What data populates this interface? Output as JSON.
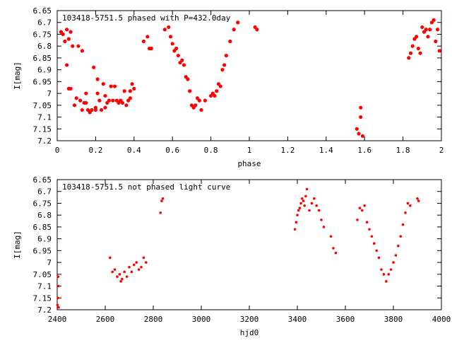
{
  "chart_data": [
    {
      "type": "scatter",
      "title": "103418-5751.5 phased with P=432.0day",
      "xlabel": "phase",
      "ylabel": "I[mag]",
      "xlim": [
        0,
        2
      ],
      "ylim": [
        6.65,
        7.2
      ],
      "y_inverted": true,
      "xticks": [
        "0",
        "0.2",
        "0.4",
        "0.6",
        "0.8",
        "1",
        "1.2",
        "1.4",
        "1.6",
        "1.8",
        "2"
      ],
      "yticks": [
        "6.65",
        "6.7",
        "6.75",
        "6.8",
        "6.85",
        "6.9",
        "6.95",
        "7",
        "7.05",
        "7.1",
        "7.15",
        "7.2"
      ],
      "marker_color": "#ff0000",
      "series": [
        {
          "x": [
            0.02,
            0.03,
            0.04,
            0.05,
            0.05,
            0.06,
            0.06,
            0.07,
            0.07,
            0.08,
            0.09,
            0.1,
            0.11,
            0.12,
            0.13,
            0.13,
            0.14,
            0.15,
            0.15,
            0.16,
            0.17,
            0.18,
            0.19,
            0.2,
            0.2,
            0.21,
            0.21,
            0.22,
            0.23,
            0.24,
            0.25,
            0.25,
            0.26,
            0.27,
            0.28,
            0.29,
            0.3,
            0.31,
            0.32,
            0.33,
            0.34,
            0.35,
            0.36,
            0.37,
            0.38,
            0.38,
            0.39,
            0.4,
            0.45,
            0.47,
            0.48,
            0.49,
            0.56,
            0.58,
            0.59,
            0.6,
            0.61,
            0.62,
            0.63,
            0.64,
            0.65,
            0.66,
            0.67,
            0.68,
            0.69,
            0.7,
            0.71,
            0.72,
            0.73,
            0.74,
            0.75,
            0.77,
            0.8,
            0.81,
            0.82,
            0.83,
            0.84,
            0.85,
            0.86,
            0.87,
            0.88,
            0.9,
            0.92,
            0.94,
            1.03,
            1.04,
            1.56,
            1.57,
            1.58,
            1.58,
            1.59,
            1.83,
            1.84,
            1.85,
            1.86,
            1.87,
            1.88,
            1.89,
            1.9,
            1.91,
            1.92,
            1.93,
            1.94,
            1.95,
            1.96,
            1.97,
            1.98,
            1.99
          ],
          "y": [
            6.74,
            6.75,
            6.78,
            6.88,
            6.73,
            6.77,
            6.98,
            6.74,
            6.98,
            6.8,
            7.05,
            7.02,
            6.8,
            7.03,
            7.07,
            6.82,
            7.04,
            7.0,
            7.04,
            7.07,
            7.08,
            7.07,
            6.89,
            7.07,
            7.06,
            7.0,
            6.94,
            7.03,
            7.07,
            6.96,
            7.06,
            7.01,
            7.04,
            7.03,
            6.97,
            7.03,
            6.97,
            7.03,
            7.04,
            7.03,
            7.04,
            6.99,
            7.05,
            7.03,
            7.02,
            6.99,
            6.96,
            6.98,
            6.78,
            6.76,
            6.81,
            6.81,
            6.73,
            6.72,
            6.76,
            6.79,
            6.82,
            6.81,
            6.84,
            6.87,
            6.86,
            6.88,
            6.93,
            6.94,
            6.99,
            7.05,
            7.06,
            7.05,
            7.02,
            7.03,
            7.07,
            7.03,
            7.01,
            7.0,
            7.01,
            6.99,
            6.96,
            6.97,
            6.9,
            6.88,
            6.84,
            6.78,
            6.73,
            6.7,
            6.72,
            6.73,
            7.15,
            7.17,
            7.06,
            7.1,
            7.18,
            6.85,
            6.83,
            6.8,
            6.77,
            6.76,
            6.81,
            6.83,
            6.72,
            6.74,
            6.73,
            6.76,
            6.73,
            6.7,
            6.69,
            6.78,
            6.73,
            6.82
          ]
        }
      ]
    },
    {
      "type": "scatter",
      "title": "103418-5751.5 not phased light curve",
      "xlabel": "hjd0",
      "ylabel": "I[mag]",
      "xlim": [
        2400,
        4000
      ],
      "ylim": [
        6.65,
        7.2
      ],
      "y_inverted": true,
      "xticks": [
        "2400",
        "2600",
        "2800",
        "3000",
        "3200",
        "3400",
        "3600",
        "3800",
        "4000"
      ],
      "yticks": [
        "6.65",
        "6.7",
        "6.75",
        "6.8",
        "6.85",
        "6.9",
        "6.95",
        "7",
        "7.05",
        "7.1",
        "7.15",
        "7.2"
      ],
      "marker_color": "#ff0000",
      "series": [
        {
          "x": [
            2401,
            2403,
            2404,
            2405,
            2406,
            2620,
            2630,
            2640,
            2650,
            2660,
            2665,
            2670,
            2680,
            2690,
            2700,
            2710,
            2720,
            2730,
            2740,
            2750,
            2760,
            2770,
            2830,
            2835,
            2840,
            3390,
            3395,
            3400,
            3405,
            3410,
            3415,
            3420,
            3425,
            3430,
            3435,
            3440,
            3450,
            3460,
            3470,
            3480,
            3490,
            3500,
            3510,
            3540,
            3550,
            3560,
            3650,
            3660,
            3670,
            3680,
            3690,
            3700,
            3710,
            3720,
            3730,
            3740,
            3750,
            3760,
            3770,
            3780,
            3790,
            3800,
            3810,
            3820,
            3830,
            3840,
            3850,
            3860,
            3870,
            3900,
            3905
          ],
          "y": [
            7.18,
            7.15,
            7.06,
            7.1,
            7.19,
            6.98,
            7.04,
            7.03,
            7.06,
            7.05,
            7.08,
            7.07,
            7.04,
            7.06,
            7.02,
            7.04,
            7.01,
            7.0,
            7.03,
            7.02,
            6.98,
            7.0,
            6.79,
            6.74,
            6.73,
            6.86,
            6.83,
            6.8,
            6.78,
            6.77,
            6.75,
            6.73,
            6.74,
            6.76,
            6.72,
            6.69,
            6.78,
            6.75,
            6.73,
            6.76,
            6.78,
            6.82,
            6.85,
            6.89,
            6.94,
            6.96,
            6.82,
            6.77,
            6.78,
            6.76,
            6.83,
            6.86,
            6.89,
            6.92,
            6.95,
            6.98,
            7.03,
            7.05,
            7.08,
            7.05,
            7.03,
            7.0,
            6.97,
            6.93,
            6.89,
            6.84,
            6.79,
            6.75,
            6.76,
            6.73,
            6.74
          ]
        }
      ]
    }
  ]
}
